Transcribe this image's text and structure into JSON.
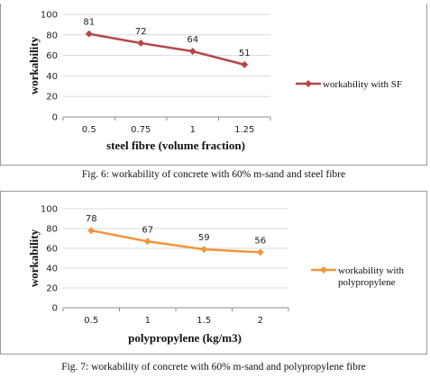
{
  "chart_data": [
    {
      "type": "line",
      "x": [
        "0.5",
        "0.75",
        "1",
        "1.25"
      ],
      "series": [
        {
          "name": "workability with SF",
          "values": [
            81,
            72,
            64,
            51
          ],
          "color": "#b5464a"
        }
      ],
      "xlabel": "steel fibre (volume fraction)",
      "ylabel": "workability",
      "ylim": [
        0,
        100
      ],
      "yticks": [
        "0",
        "20",
        "40",
        "60",
        "80",
        "100"
      ],
      "data_labels": [
        "81",
        "72",
        "64",
        "51"
      ],
      "legend": "right",
      "grid": true
    },
    {
      "type": "line",
      "x": [
        "0.5",
        "1",
        "1.5",
        "2"
      ],
      "series": [
        {
          "name": "workability with polypropylene",
          "values": [
            78,
            67,
            59,
            56
          ],
          "color": "#f2963b"
        }
      ],
      "xlabel": "polypropylene (kg/m3)",
      "ylabel": "workability",
      "ylim": [
        0,
        100
      ],
      "yticks": [
        "0",
        "20",
        "40",
        "60",
        "80",
        "100"
      ],
      "data_labels": [
        "78",
        "67",
        "59",
        "56"
      ],
      "legend": "right",
      "grid": true
    }
  ],
  "captions": {
    "fig6": "Fig. 6: workability of concrete with 60% m-sand and steel fibre",
    "fig7": "Fig. 7: workability of concrete with 60% m-sand and polypropylene fibre"
  }
}
